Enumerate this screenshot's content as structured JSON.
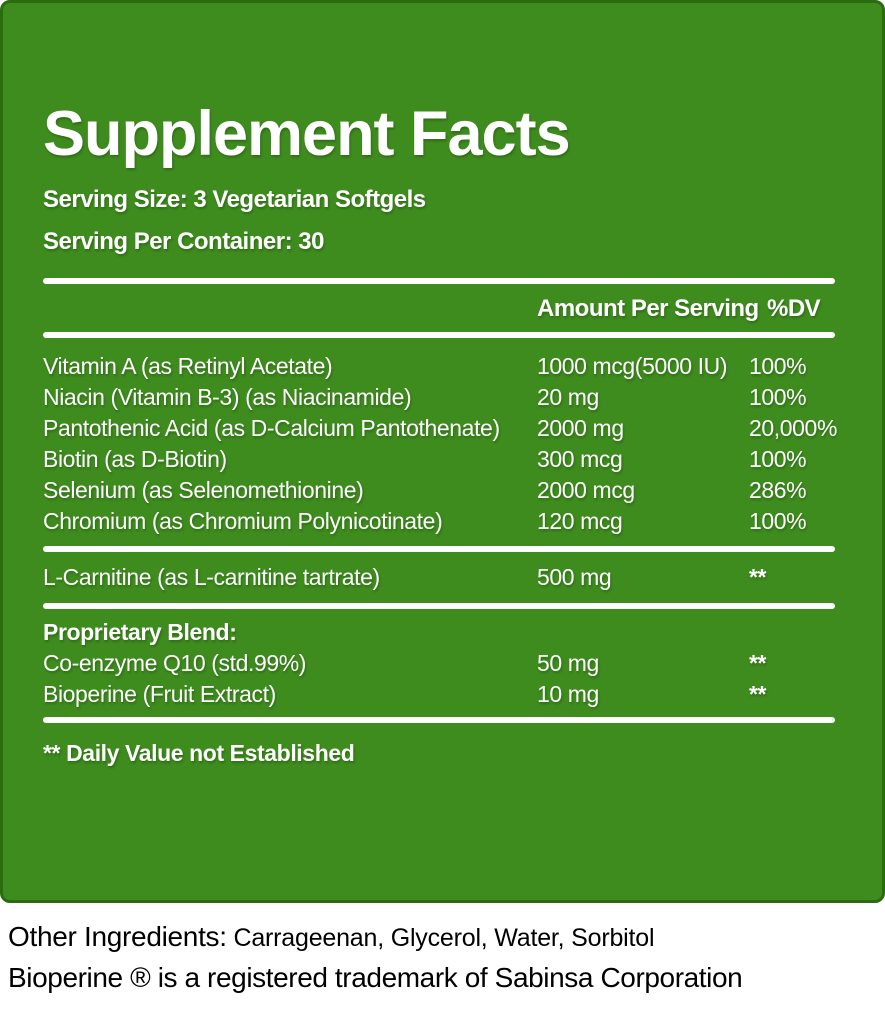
{
  "label": {
    "title": "Supplement Facts",
    "serving_size": "Serving Size: 3 Vegetarian Softgels",
    "serving_per_container": "Serving Per Container: 30",
    "columns": {
      "amount": "Amount Per Serving",
      "dv": "%DV"
    },
    "rows": [
      {
        "name": "Vitamin A (as Retinyl Acetate)",
        "amount": "1000 mcg(5000 IU)",
        "dv": "100%"
      },
      {
        "name": "Niacin (Vitamin B-3) (as Niacinamide)",
        "amount": "20 mg",
        "dv": "100%"
      },
      {
        "name": "Pantothenic Acid (as D-Calcium Pantothenate)",
        "amount": "2000 mg",
        "dv": "20,000%"
      },
      {
        "name": "Biotin (as D-Biotin)",
        "amount": "300 mcg",
        "dv": "100%"
      },
      {
        "name": "Selenium (as Selenomethionine)",
        "amount": "2000 mcg",
        "dv": "286%"
      },
      {
        "name": "Chromium (as Chromium Polynicotinate)",
        "amount": "120 mcg",
        "dv": "100%"
      },
      {
        "name": "L-Carnitine (as L-carnitine tartrate)",
        "amount": "500 mg",
        "dv": "**"
      },
      {
        "name": "Proprietary Blend:",
        "amount": "",
        "dv": ""
      },
      {
        "name": "Co-enzyme Q10 (std.99%)",
        "amount": "50 mg",
        "dv": "**"
      },
      {
        "name": "Bioperine (Fruit Extract)",
        "amount": "10 mg",
        "dv": "**"
      }
    ],
    "footnote": "** Daily Value not Established"
  },
  "footer": {
    "other_ingredients_label": "Other Ingredients:",
    "other_ingredients_value": "Carrageenan, Glycerol, Water, Sorbitol",
    "trademark_line": "Bioperine ® is a registered trademark of Sabinsa Corporation"
  },
  "colors": {
    "panel_green": "#3E8B1E",
    "panel_border_green": "#2C6C10",
    "divider_white": "#FFFFFF",
    "text_on_panel": "#FFFFFF",
    "footer_text": "#000000",
    "page_background": "#FFFFFF"
  }
}
